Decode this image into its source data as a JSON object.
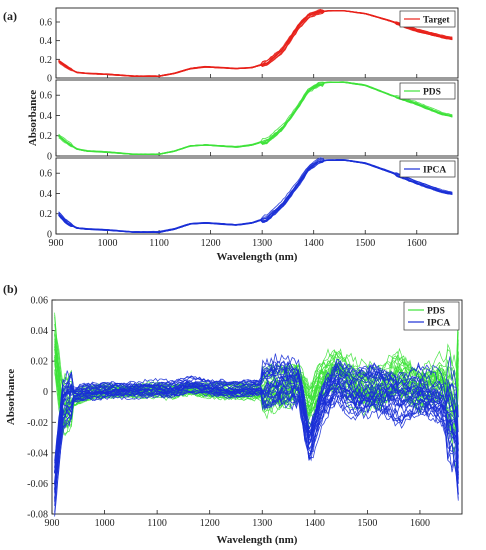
{
  "chart_data": [
    {
      "panel": "(a)",
      "type": "line",
      "ylabel": "Absorbance",
      "xlabel": "Wavelength (nm)",
      "xlim": [
        900,
        1680
      ],
      "xticks": [
        900,
        1000,
        1100,
        1200,
        1300,
        1400,
        1500,
        1600
      ],
      "subplots": [
        {
          "legend": "Target",
          "color": "#e8211a",
          "ylim": [
            0,
            0.75
          ],
          "yticks": [
            "0",
            "0.2",
            "0.4",
            "0.6"
          ],
          "x": [
            905,
            920,
            940,
            960,
            1000,
            1050,
            1100,
            1130,
            1160,
            1190,
            1220,
            1250,
            1280,
            1310,
            1340,
            1370,
            1390,
            1410,
            1430,
            1460,
            1500,
            1550,
            1600,
            1650,
            1670
          ],
          "y": [
            0.18,
            0.12,
            0.06,
            0.05,
            0.04,
            0.02,
            0.02,
            0.05,
            0.1,
            0.12,
            0.11,
            0.1,
            0.11,
            0.16,
            0.3,
            0.55,
            0.67,
            0.71,
            0.72,
            0.72,
            0.69,
            0.61,
            0.51,
            0.44,
            0.42
          ]
        },
        {
          "legend": "PDS",
          "color": "#3ee23a",
          "ylim": [
            0,
            0.75
          ],
          "yticks": [
            "0",
            "0.2",
            "0.4",
            "0.6"
          ],
          "x": [
            905,
            920,
            940,
            960,
            1000,
            1050,
            1100,
            1130,
            1160,
            1190,
            1220,
            1250,
            1280,
            1310,
            1340,
            1370,
            1390,
            1410,
            1430,
            1460,
            1500,
            1550,
            1600,
            1650,
            1670
          ],
          "y": [
            0.2,
            0.14,
            0.07,
            0.05,
            0.04,
            0.02,
            0.02,
            0.05,
            0.1,
            0.11,
            0.1,
            0.09,
            0.11,
            0.16,
            0.29,
            0.5,
            0.66,
            0.72,
            0.73,
            0.73,
            0.7,
            0.6,
            0.52,
            0.42,
            0.4
          ]
        },
        {
          "legend": "IPCA",
          "color": "#1a2fd6",
          "ylim": [
            0,
            0.75
          ],
          "yticks": [
            "0",
            "0.2",
            "0.4",
            "0.6"
          ],
          "x": [
            905,
            920,
            940,
            960,
            1000,
            1050,
            1100,
            1130,
            1160,
            1190,
            1220,
            1250,
            1280,
            1310,
            1340,
            1370,
            1390,
            1410,
            1430,
            1460,
            1500,
            1550,
            1600,
            1650,
            1670
          ],
          "y": [
            0.2,
            0.12,
            0.06,
            0.05,
            0.04,
            0.02,
            0.02,
            0.05,
            0.1,
            0.11,
            0.1,
            0.09,
            0.11,
            0.16,
            0.3,
            0.5,
            0.65,
            0.72,
            0.73,
            0.73,
            0.7,
            0.61,
            0.51,
            0.42,
            0.4
          ]
        }
      ]
    },
    {
      "panel": "(b)",
      "type": "line",
      "ylabel": "Absorbance",
      "xlabel": "Wavelength (nm)",
      "xlim": [
        900,
        1680
      ],
      "ylim": [
        -0.08,
        0.06
      ],
      "xticks": [
        900,
        1000,
        1100,
        1200,
        1300,
        1400,
        1500,
        1600
      ],
      "yticks": [
        "-0.08",
        "-0.06",
        "-0.04",
        "-0.02",
        "0",
        "0.02",
        "0.04",
        "0.06"
      ],
      "legend": [
        "PDS",
        "IPCA"
      ],
      "series": [
        {
          "name": "PDS",
          "color": "#3ee23a",
          "x": [
            905,
            920,
            940,
            960,
            1000,
            1050,
            1100,
            1130,
            1160,
            1200,
            1250,
            1300,
            1340,
            1370,
            1390,
            1410,
            1440,
            1480,
            1520,
            1560,
            1600,
            1640,
            1670,
            1675
          ],
          "y": [
            0.032,
            -0.012,
            -0.005,
            -0.002,
            0.0,
            0.0,
            0.001,
            0.0,
            0.002,
            0.0,
            0.0,
            0.0,
            0.002,
            0.006,
            -0.01,
            0.006,
            0.014,
            0.004,
            0.0,
            0.012,
            0.002,
            0.01,
            -0.012,
            0.045
          ]
        },
        {
          "name": "IPCA",
          "color": "#1a2fd6",
          "x": [
            905,
            920,
            940,
            960,
            1000,
            1050,
            1100,
            1130,
            1160,
            1200,
            1250,
            1300,
            1340,
            1370,
            1390,
            1410,
            1440,
            1480,
            1520,
            1560,
            1600,
            1640,
            1670,
            1675
          ],
          "y": [
            -0.062,
            -0.01,
            -0.003,
            -0.001,
            0.0,
            0.001,
            0.002,
            0.001,
            0.004,
            0.002,
            0.001,
            0.003,
            0.006,
            0.004,
            -0.035,
            -0.01,
            0.006,
            -0.004,
            0.0,
            -0.006,
            0.0,
            -0.006,
            -0.028,
            -0.067
          ]
        }
      ]
    }
  ]
}
